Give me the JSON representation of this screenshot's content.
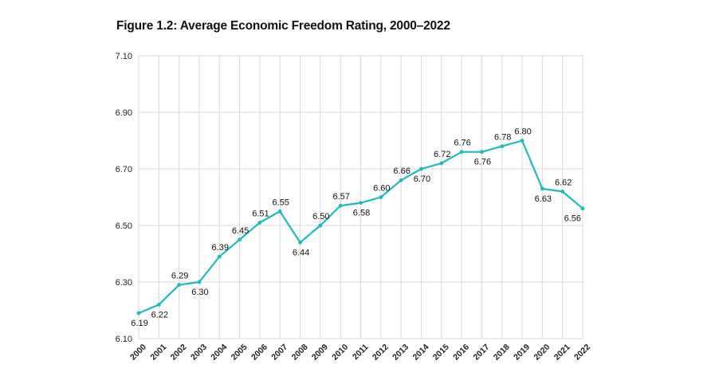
{
  "chart_data": {
    "type": "line",
    "title": "Figure 1.2: Average Economic Freedom Rating, 2000–2022",
    "xlabel": "",
    "ylabel": "",
    "ylim": [
      6.1,
      7.1
    ],
    "yticks": [
      "6.10",
      "6.30",
      "6.50",
      "6.70",
      "6.90",
      "7.10"
    ],
    "categories": [
      "2000",
      "2001",
      "2002",
      "2003",
      "2004",
      "2005",
      "2006",
      "2007",
      "2008",
      "2009",
      "2010",
      "2011",
      "2012",
      "2013",
      "2014",
      "2015",
      "2016",
      "2017",
      "2018",
      "2019",
      "2020",
      "2021",
      "2022"
    ],
    "series": [
      {
        "name": "Average Economic Freedom Rating",
        "color": "#1bbcbc",
        "values": [
          6.19,
          6.22,
          6.29,
          6.3,
          6.39,
          6.45,
          6.51,
          6.55,
          6.44,
          6.5,
          6.57,
          6.58,
          6.6,
          6.66,
          6.7,
          6.72,
          6.76,
          6.76,
          6.78,
          6.8,
          6.63,
          6.62,
          6.56
        ],
        "labels": [
          "6.19",
          "6.22",
          "6.29",
          "6.30",
          "6.39",
          "6.45",
          "6.51",
          "6.55",
          "6.44",
          "6.50",
          "6.57",
          "6.58",
          "6.60",
          "6.66",
          "6.70",
          "6.72",
          "6.76",
          "6.76",
          "6.78",
          "6.80",
          "6.63",
          "6.62",
          "6.56"
        ],
        "label_positions": [
          "below",
          "below",
          "above",
          "below",
          "above",
          "above",
          "above",
          "above",
          "below",
          "above",
          "above",
          "below",
          "above",
          "above",
          "below",
          "above",
          "above",
          "below",
          "above",
          "above",
          "below",
          "above",
          "below"
        ]
      }
    ],
    "grid": true
  }
}
